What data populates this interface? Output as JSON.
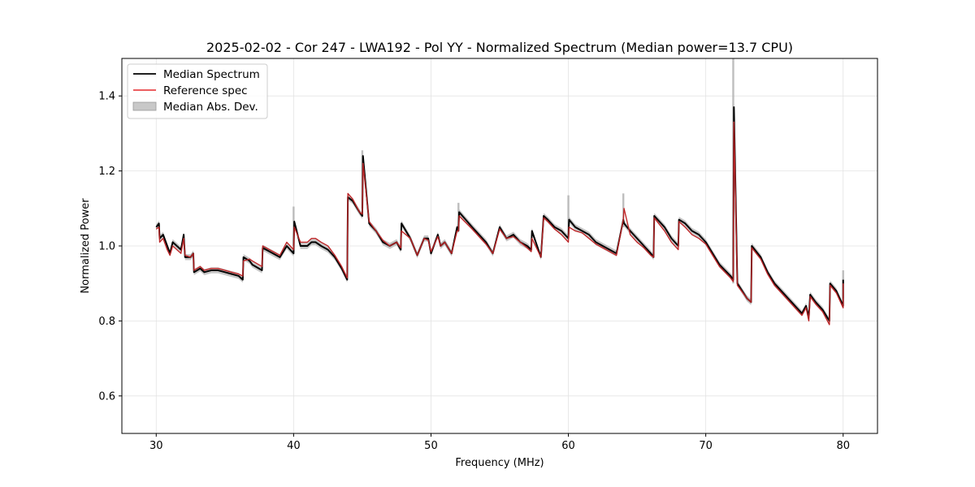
{
  "chart_data": {
    "type": "line",
    "title": "2025-02-02 - Cor 247 - LWA192 - Pol YY - Normalized Spectrum (Median power=13.7 CPU)",
    "xlabel": "Frequency (MHz)",
    "ylabel": "Normalized Power",
    "xlim": [
      27.5,
      82.5
    ],
    "ylim": [
      0.5,
      1.5
    ],
    "xticks": [
      30,
      40,
      50,
      60,
      70,
      80
    ],
    "yticks": [
      0.6,
      0.8,
      1.0,
      1.2,
      1.4
    ],
    "xtick_labels": [
      "30",
      "40",
      "50",
      "60",
      "70",
      "80"
    ],
    "ytick_labels": [
      "0.6",
      "0.8",
      "1.0",
      "1.2",
      "1.4"
    ],
    "grid": true,
    "legend_position": "top-left",
    "legend": [
      "Median Spectrum",
      "Reference spec",
      "Median Abs. Dev."
    ],
    "colors": {
      "median": "#000000",
      "reference": "#e8474a",
      "mad": "#b3b3b3"
    },
    "series": [
      {
        "name": "Median Spectrum",
        "x": [
          30.0,
          30.2,
          30.25,
          30.5,
          30.8,
          31.0,
          31.2,
          31.5,
          31.8,
          32.0,
          32.1,
          32.5,
          32.7,
          32.75,
          33.2,
          33.5,
          34.0,
          34.5,
          35.0,
          35.5,
          36.0,
          36.3,
          36.35,
          36.8,
          37.0,
          37.7,
          37.75,
          38.5,
          39.0,
          39.5,
          40.0,
          40.05,
          40.5,
          41.0,
          41.3,
          41.6,
          42.0,
          42.5,
          43.0,
          43.5,
          43.9,
          43.95,
          44.3,
          44.8,
          45.0,
          45.05,
          45.5,
          46.0,
          46.5,
          47.0,
          47.5,
          47.8,
          47.85,
          48.5,
          49.0,
          49.5,
          49.8,
          50.0,
          50.5,
          50.7,
          51.0,
          51.5,
          51.9,
          52.0,
          52.05,
          53.0,
          54.0,
          54.5,
          55.0,
          55.5,
          56.0,
          56.5,
          57.0,
          57.3,
          57.35,
          58.0,
          58.2,
          58.5,
          59.0,
          59.5,
          60.0,
          60.05,
          60.5,
          61.0,
          61.5,
          62.0,
          62.5,
          63.0,
          63.5,
          64.0,
          64.05,
          64.5,
          65.0,
          65.5,
          66.0,
          66.2,
          66.25,
          67.0,
          67.5,
          68.0,
          68.05,
          68.5,
          69.0,
          69.5,
          70.0,
          71.0,
          71.8,
          72.0,
          72.05,
          72.3,
          73.0,
          73.3,
          73.35,
          74.0,
          74.5,
          75.0,
          75.5,
          76.0,
          76.5,
          77.0,
          77.3,
          77.5,
          77.6,
          78.0,
          78.5,
          79.0,
          79.05,
          79.5,
          80.0,
          80.0
        ],
        "values": [
          1.05,
          1.06,
          1.02,
          1.03,
          1.0,
          0.98,
          1.01,
          1.0,
          0.99,
          1.03,
          0.97,
          0.97,
          0.98,
          0.93,
          0.94,
          0.93,
          0.935,
          0.935,
          0.93,
          0.925,
          0.92,
          0.91,
          0.97,
          0.96,
          0.95,
          0.935,
          0.995,
          0.98,
          0.97,
          1.0,
          0.98,
          1.065,
          1.0,
          1.0,
          1.01,
          1.01,
          1.0,
          0.99,
          0.97,
          0.94,
          0.91,
          1.13,
          1.12,
          1.09,
          1.08,
          1.24,
          1.06,
          1.04,
          1.01,
          1.0,
          1.01,
          0.99,
          1.06,
          1.02,
          0.975,
          1.02,
          1.02,
          0.98,
          1.03,
          1.0,
          1.01,
          0.98,
          1.05,
          1.04,
          1.09,
          1.05,
          1.01,
          0.98,
          1.05,
          1.02,
          1.03,
          1.01,
          1.0,
          0.99,
          1.04,
          0.97,
          1.08,
          1.07,
          1.05,
          1.04,
          1.02,
          1.07,
          1.05,
          1.04,
          1.03,
          1.01,
          1.0,
          0.99,
          0.98,
          1.07,
          1.06,
          1.04,
          1.02,
          1.0,
          0.98,
          0.97,
          1.08,
          1.05,
          1.02,
          1.0,
          1.07,
          1.06,
          1.04,
          1.03,
          1.01,
          0.95,
          0.92,
          0.91,
          1.37,
          0.9,
          0.86,
          0.85,
          1.0,
          0.97,
          0.93,
          0.9,
          0.88,
          0.86,
          0.84,
          0.82,
          0.84,
          0.81,
          0.87,
          0.85,
          0.83,
          0.8,
          0.9,
          0.88,
          0.84,
          0.91
        ]
      },
      {
        "name": "Reference spec",
        "x": [
          30.0,
          30.2,
          30.25,
          30.5,
          30.8,
          31.0,
          31.2,
          31.5,
          31.8,
          32.0,
          32.1,
          32.5,
          32.7,
          32.75,
          33.2,
          33.5,
          34.0,
          34.5,
          35.0,
          35.5,
          36.0,
          36.3,
          36.35,
          36.8,
          37.0,
          37.7,
          37.75,
          38.5,
          39.0,
          39.5,
          40.0,
          40.05,
          40.5,
          41.0,
          41.3,
          41.6,
          42.0,
          42.5,
          43.0,
          43.5,
          43.9,
          43.95,
          44.3,
          44.8,
          45.0,
          45.05,
          45.5,
          46.0,
          46.5,
          47.0,
          47.5,
          47.8,
          47.85,
          48.5,
          49.0,
          49.5,
          49.8,
          50.0,
          50.5,
          50.7,
          51.0,
          51.5,
          51.9,
          52.0,
          52.05,
          53.0,
          54.0,
          54.5,
          55.0,
          55.5,
          56.0,
          56.5,
          57.0,
          57.3,
          57.35,
          58.0,
          58.2,
          58.5,
          59.0,
          59.5,
          60.0,
          60.05,
          60.5,
          61.0,
          61.5,
          62.0,
          62.5,
          63.0,
          63.5,
          64.0,
          64.05,
          64.5,
          65.0,
          65.5,
          66.0,
          66.2,
          66.25,
          67.0,
          67.5,
          68.0,
          68.05,
          68.5,
          69.0,
          69.5,
          70.0,
          71.0,
          71.8,
          72.0,
          72.05,
          72.3,
          73.0,
          73.3,
          73.35,
          74.0,
          74.5,
          75.0,
          75.5,
          76.0,
          76.5,
          77.0,
          77.3,
          77.5,
          77.6,
          78.0,
          78.5,
          79.0,
          79.05,
          79.5,
          80.0,
          80.0
        ],
        "values": [
          1.045,
          1.05,
          1.01,
          1.02,
          0.99,
          0.975,
          1.0,
          0.99,
          0.98,
          1.02,
          0.975,
          0.97,
          0.98,
          0.935,
          0.945,
          0.935,
          0.94,
          0.94,
          0.935,
          0.93,
          0.925,
          0.92,
          0.96,
          0.965,
          0.96,
          0.945,
          1.0,
          0.985,
          0.975,
          1.01,
          0.99,
          1.05,
          1.01,
          1.01,
          1.02,
          1.02,
          1.01,
          1.0,
          0.975,
          0.945,
          0.915,
          1.14,
          1.125,
          1.09,
          1.085,
          1.22,
          1.065,
          1.04,
          1.015,
          1.0,
          1.01,
          0.995,
          1.04,
          1.02,
          0.975,
          1.02,
          1.015,
          0.985,
          1.025,
          1.0,
          1.01,
          0.98,
          1.04,
          1.04,
          1.08,
          1.045,
          1.005,
          0.98,
          1.045,
          1.02,
          1.025,
          1.01,
          0.995,
          0.985,
          1.02,
          0.97,
          1.075,
          1.065,
          1.045,
          1.03,
          1.01,
          1.05,
          1.04,
          1.035,
          1.02,
          1.005,
          0.995,
          0.985,
          0.975,
          1.07,
          1.1,
          1.03,
          1.01,
          0.995,
          0.975,
          0.97,
          1.075,
          1.04,
          1.01,
          0.99,
          1.065,
          1.05,
          1.03,
          1.02,
          1.005,
          0.945,
          0.915,
          0.905,
          1.33,
          0.895,
          0.86,
          0.85,
          0.995,
          0.965,
          0.925,
          0.895,
          0.875,
          0.855,
          0.835,
          0.815,
          0.835,
          0.8,
          0.865,
          0.845,
          0.825,
          0.79,
          0.895,
          0.875,
          0.835,
          0.9
        ]
      }
    ],
    "mad_band": {
      "name": "Median Abs. Dev.",
      "half_width": 0.008,
      "spikes": [
        {
          "x": 40.0,
          "low": 1.0,
          "high": 1.105
        },
        {
          "x": 45.0,
          "low": 1.1,
          "high": 1.255
        },
        {
          "x": 52.0,
          "low": 1.05,
          "high": 1.115
        },
        {
          "x": 60.0,
          "low": 1.03,
          "high": 1.135
        },
        {
          "x": 64.0,
          "low": 1.05,
          "high": 1.14
        },
        {
          "x": 72.0,
          "low": 0.9,
          "high": 1.5
        },
        {
          "x": 80.0,
          "low": 0.86,
          "high": 0.935
        }
      ]
    }
  }
}
